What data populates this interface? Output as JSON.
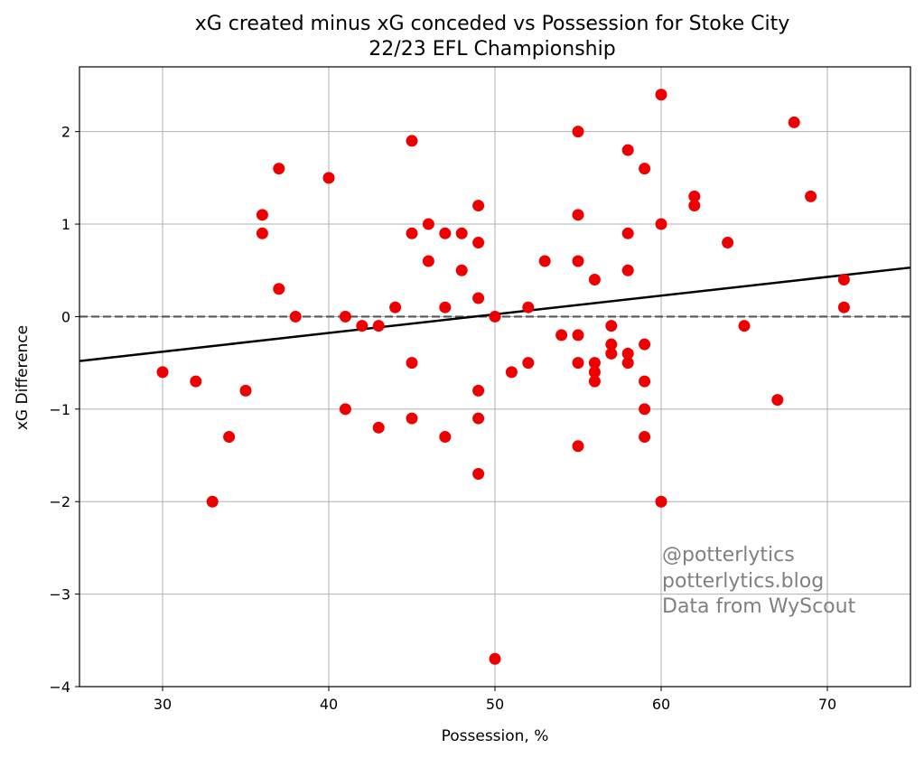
{
  "chart_data": {
    "type": "scatter",
    "title": "xG created minus xG conceded vs Possession for Stoke City",
    "subtitle": "22/23 EFL Championship",
    "xlabel": "Possession, %",
    "ylabel": "xG Difference",
    "xlim": [
      25,
      75
    ],
    "ylim": [
      -4,
      2.7
    ],
    "xticks": [
      30,
      40,
      50,
      60,
      70
    ],
    "yticks": [
      -4,
      -3,
      -2,
      -1,
      0,
      1,
      2
    ],
    "xtick_labels": [
      "30",
      "40",
      "50",
      "60",
      "70"
    ],
    "ytick_labels": [
      "−4",
      "−3",
      "−2",
      "−1",
      "0",
      "1",
      "2"
    ],
    "grid": true,
    "zero_line": {
      "y": 0,
      "style": "dashed",
      "color": "#555555"
    },
    "trend_line": {
      "x": [
        25,
        75
      ],
      "y": [
        -0.48,
        0.53
      ],
      "color": "#000000"
    },
    "point_color": "#ee0000",
    "points": [
      [
        30,
        -0.6
      ],
      [
        32,
        -0.7
      ],
      [
        33,
        -2.0
      ],
      [
        34,
        -1.3
      ],
      [
        35,
        -0.8
      ],
      [
        36,
        1.1
      ],
      [
        36,
        0.9
      ],
      [
        37,
        1.6
      ],
      [
        37,
        0.3
      ],
      [
        38,
        0.0
      ],
      [
        40,
        1.5
      ],
      [
        41,
        0.0
      ],
      [
        41,
        -1.0
      ],
      [
        42,
        -0.1
      ],
      [
        43,
        -0.1
      ],
      [
        43,
        -1.2
      ],
      [
        44,
        0.1
      ],
      [
        45,
        1.9
      ],
      [
        45,
        0.9
      ],
      [
        45,
        -0.5
      ],
      [
        45,
        -1.1
      ],
      [
        46,
        1.0
      ],
      [
        46,
        0.6
      ],
      [
        47,
        0.9
      ],
      [
        47,
        0.1
      ],
      [
        47,
        -1.3
      ],
      [
        48,
        0.9
      ],
      [
        48,
        0.5
      ],
      [
        49,
        1.2
      ],
      [
        49,
        0.8
      ],
      [
        49,
        0.2
      ],
      [
        49,
        -0.8
      ],
      [
        49,
        -1.1
      ],
      [
        49,
        -1.7
      ],
      [
        50,
        0.0
      ],
      [
        50,
        -3.7
      ],
      [
        51,
        -0.6
      ],
      [
        52,
        0.1
      ],
      [
        52,
        -0.5
      ],
      [
        53,
        0.6
      ],
      [
        54,
        -0.2
      ],
      [
        55,
        2.0
      ],
      [
        55,
        1.1
      ],
      [
        55,
        0.6
      ],
      [
        55,
        -0.2
      ],
      [
        55,
        -0.5
      ],
      [
        55,
        -1.4
      ],
      [
        56,
        0.4
      ],
      [
        56,
        -0.5
      ],
      [
        56,
        -0.6
      ],
      [
        56,
        -0.7
      ],
      [
        57,
        -0.1
      ],
      [
        57,
        -0.3
      ],
      [
        57,
        -0.4
      ],
      [
        58,
        1.8
      ],
      [
        58,
        0.9
      ],
      [
        58,
        0.5
      ],
      [
        58,
        -0.4
      ],
      [
        58,
        -0.5
      ],
      [
        59,
        1.6
      ],
      [
        59,
        -0.3
      ],
      [
        59,
        -0.7
      ],
      [
        59,
        -1.0
      ],
      [
        59,
        -1.3
      ],
      [
        60,
        2.4
      ],
      [
        60,
        1.0
      ],
      [
        60,
        -2.0
      ],
      [
        62,
        1.3
      ],
      [
        62,
        1.2
      ],
      [
        64,
        0.8
      ],
      [
        65,
        -0.1
      ],
      [
        67,
        -0.9
      ],
      [
        68,
        2.1
      ],
      [
        69,
        1.3
      ],
      [
        71,
        0.4
      ],
      [
        71,
        0.1
      ]
    ],
    "annotation": [
      "@potterlytics",
      "potterlytics.blog",
      "Data from WyScout"
    ]
  }
}
